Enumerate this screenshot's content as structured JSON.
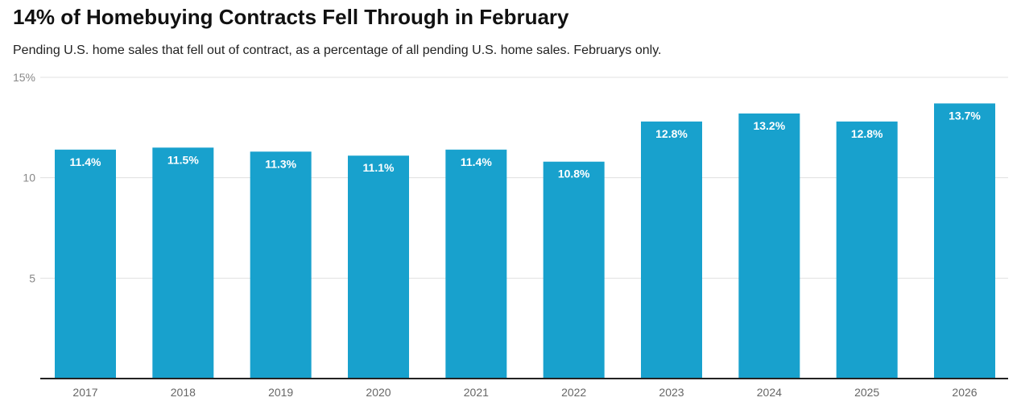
{
  "header": {
    "title": "14% of Homebuying Contracts Fell Through in February",
    "subtitle": "Pending U.S. home sales that fell out of contract, as a percentage of all pending U.S. home sales. Februarys only."
  },
  "chart_data": {
    "type": "bar",
    "title": "14% of Homebuying Contracts Fell Through in February",
    "subtitle": "Pending U.S. home sales that fell out of contract, as a percentage of all pending U.S. home sales. Februarys only.",
    "categories": [
      "2017",
      "2018",
      "2019",
      "2020",
      "2021",
      "2022",
      "2023",
      "2024",
      "2025",
      "2026"
    ],
    "values": [
      11.4,
      11.5,
      11.3,
      11.1,
      11.4,
      10.8,
      12.8,
      13.2,
      12.8,
      13.7
    ],
    "data_labels": [
      "11.4%",
      "11.5%",
      "11.3%",
      "11.1%",
      "11.4%",
      "10.8%",
      "12.8%",
      "13.2%",
      "12.8%",
      "13.7%"
    ],
    "y_ticks": [
      {
        "value": 5,
        "label": "5"
      },
      {
        "value": 10,
        "label": "10"
      },
      {
        "value": 15,
        "label": "15%"
      }
    ],
    "ylim": [
      0,
      15
    ],
    "xlabel": "",
    "ylabel": "",
    "grid": true,
    "colors": {
      "bar": "#18a1cd",
      "grid": "#e0e0e0",
      "baseline": "#222222"
    }
  }
}
